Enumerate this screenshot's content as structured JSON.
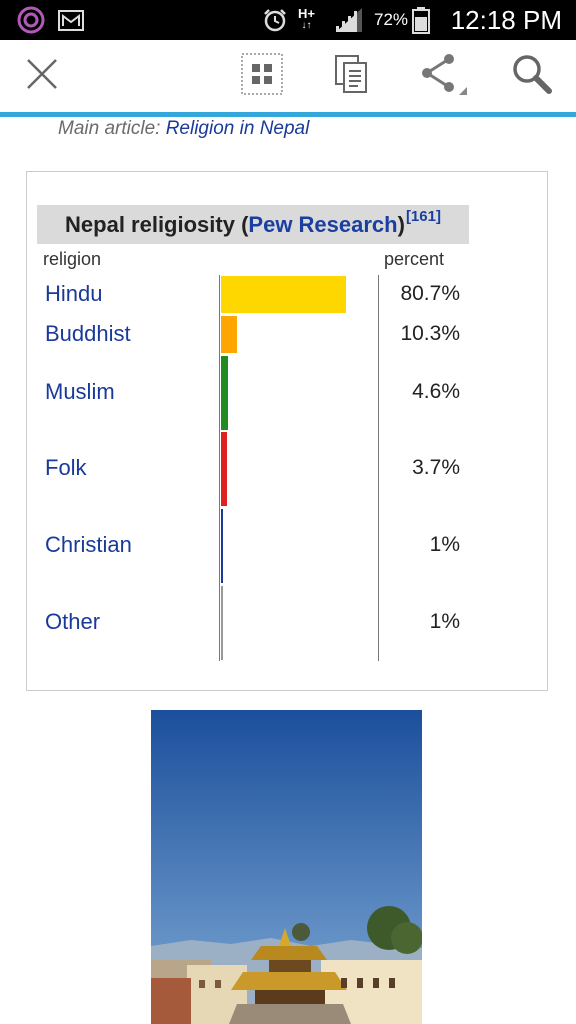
{
  "status_bar": {
    "battery_percent": "72%",
    "clock": "12:18 PM",
    "network": "H+"
  },
  "toolbar": {
    "close_icon": "close-icon",
    "grid_icon": "grid-icon",
    "copy_icon": "copy-icon",
    "share_icon": "share-icon",
    "search_icon": "search-icon"
  },
  "article": {
    "main_article_prefix": "Main article: ",
    "main_article_link": "Religion in Nepal"
  },
  "chart_data": {
    "type": "bar",
    "title_prefix": "Nepal religiosity (",
    "title_link": "Pew Research",
    "title_suffix": ")",
    "title_ref": "[161]",
    "column_headers": {
      "label": "religion",
      "value": "percent"
    },
    "categories": [
      "Hindu",
      "Buddhist",
      "Muslim",
      "Folk",
      "Christian",
      "Other"
    ],
    "values": [
      80.7,
      10.3,
      4.6,
      3.7,
      1,
      1
    ],
    "value_labels": [
      "80.7%",
      "10.3%",
      "4.6%",
      "3.7%",
      "1%",
      "1%"
    ],
    "colors": [
      "#ffd700",
      "#ffa500",
      "#228b22",
      "#dd2222",
      "#1a3a9a",
      "#999999"
    ],
    "xlim": [
      0,
      100
    ]
  },
  "image": {
    "subject": "pagoda-temple-photo",
    "sky_top": "#1b4f9c",
    "sky_bottom": "#7fa9d4"
  }
}
